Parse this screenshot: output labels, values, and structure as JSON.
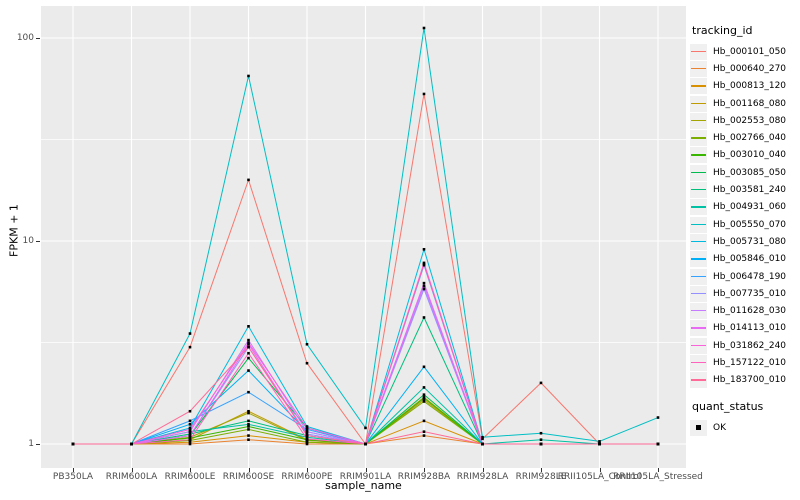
{
  "figure": {
    "background": "#FFFFFF",
    "panel_bg": "#EBEBEB",
    "grid_color": "#FFFFFF",
    "tick_color": "#333333",
    "tick_label_color": "#4D4D4D",
    "point_color": "#000000"
  },
  "chart_data": {
    "type": "line",
    "title": "",
    "xlabel": "sample_name",
    "ylabel": "FPKM + 1",
    "x_type": "categorical",
    "y_scale": "log10",
    "ylim": [
      0.76,
      143
    ],
    "y_major_breaks": [
      1,
      10,
      100
    ],
    "y_tick_labels": [
      "1",
      "10",
      "100"
    ],
    "y_minor_breaks": [
      3.162,
      31.62
    ],
    "grid": true,
    "legend_position": "right",
    "point_marker": "black-square",
    "categories": [
      "PB350LA",
      "RRIM600LA",
      "RRIM600LE",
      "RRIM600SE",
      "RRIM600PE",
      "RRIM901LA",
      "RRIM928BA",
      "RRIM928LA",
      "RRIM928LE",
      "RRII105LA_Control",
      "RRII105LA_Stressed"
    ],
    "series": [
      {
        "name": "Hb_000101_050",
        "color": "#F8766D",
        "values": [
          1.0,
          1.0,
          3.0,
          20,
          2.5,
          1.0,
          53,
          1.06,
          2.0,
          1.0,
          1.0
        ]
      },
      {
        "name": "Hb_000640_270",
        "color": "#EA8331",
        "values": [
          1.0,
          1.0,
          1.0,
          1.05,
          1.0,
          1.0,
          1.1,
          1.0,
          1.0,
          1.0,
          1.0
        ]
      },
      {
        "name": "Hb_000813_120",
        "color": "#D89000",
        "values": [
          1.0,
          1.0,
          1.02,
          1.1,
          1.02,
          1.0,
          1.3,
          1.0,
          1.0,
          1.0,
          1.0
        ]
      },
      {
        "name": "Hb_001168_080",
        "color": "#C09B00",
        "values": [
          1.0,
          1.0,
          1.05,
          1.45,
          1.05,
          1.0,
          1.65,
          1.0,
          1.0,
          1.0,
          1.0
        ]
      },
      {
        "name": "Hb_002553_080",
        "color": "#A3A500",
        "values": [
          1.0,
          1.0,
          1.08,
          1.42,
          1.04,
          1.0,
          1.7,
          1.0,
          1.0,
          1.0,
          1.0
        ]
      },
      {
        "name": "Hb_002766_040",
        "color": "#7CAE00",
        "values": [
          1.0,
          1.0,
          1.04,
          1.18,
          1.02,
          1.0,
          1.62,
          1.0,
          1.0,
          1.0,
          1.0
        ]
      },
      {
        "name": "Hb_003010_040",
        "color": "#39B600",
        "values": [
          1.0,
          1.0,
          1.07,
          1.22,
          1.05,
          1.0,
          1.68,
          1.0,
          1.0,
          1.0,
          1.0
        ]
      },
      {
        "name": "Hb_003085_050",
        "color": "#00BB4E",
        "values": [
          1.0,
          1.0,
          1.1,
          2.65,
          1.2,
          1.0,
          1.75,
          1.0,
          1.0,
          1.0,
          1.0
        ]
      },
      {
        "name": "Hb_003581_240",
        "color": "#00BF7D",
        "values": [
          1.0,
          1.0,
          1.12,
          1.3,
          1.1,
          1.0,
          4.2,
          1.0,
          1.0,
          1.0,
          1.0
        ]
      },
      {
        "name": "Hb_004931_060",
        "color": "#00C1A3",
        "values": [
          1.0,
          1.0,
          1.15,
          1.25,
          1.08,
          1.0,
          1.9,
          1.0,
          1.05,
          1.0,
          1.0
        ]
      },
      {
        "name": "Hb_005550_070",
        "color": "#00BFC4",
        "values": [
          1.0,
          1.0,
          3.5,
          65,
          3.1,
          1.2,
          112,
          1.08,
          1.13,
          1.03,
          1.35
        ]
      },
      {
        "name": "Hb_005731_080",
        "color": "#00BAE0",
        "values": [
          1.0,
          1.0,
          1.2,
          3.8,
          1.22,
          1.0,
          9.1,
          1.0,
          1.0,
          1.0,
          1.0
        ]
      },
      {
        "name": "Hb_005846_010",
        "color": "#00B0F6",
        "values": [
          1.0,
          1.0,
          1.25,
          2.3,
          1.15,
          1.0,
          2.4,
          1.0,
          1.0,
          1.0,
          1.0
        ]
      },
      {
        "name": "Hb_006478_190",
        "color": "#35A2FF",
        "values": [
          1.0,
          1.0,
          1.3,
          1.8,
          1.18,
          1.0,
          7.6,
          1.0,
          1.0,
          1.0,
          1.0
        ]
      },
      {
        "name": "Hb_007735_010",
        "color": "#9590FF",
        "values": [
          1.0,
          1.0,
          1.1,
          3.0,
          1.12,
          1.0,
          5.8,
          1.0,
          1.0,
          1.0,
          1.0
        ]
      },
      {
        "name": "Hb_011628_030",
        "color": "#C77CFF",
        "values": [
          1.0,
          1.0,
          1.15,
          3.25,
          1.15,
          1.0,
          6.0,
          1.0,
          1.0,
          1.0,
          1.0
        ]
      },
      {
        "name": "Hb_014113_010",
        "color": "#E76BF3",
        "values": [
          1.0,
          1.0,
          1.1,
          3.1,
          1.1,
          1.0,
          6.2,
          1.0,
          1.0,
          1.0,
          1.0
        ]
      },
      {
        "name": "Hb_031862_240",
        "color": "#FA62DB",
        "values": [
          1.0,
          1.0,
          1.18,
          3.15,
          1.2,
          1.0,
          7.8,
          1.0,
          1.0,
          1.0,
          1.0
        ]
      },
      {
        "name": "Hb_157122_010",
        "color": "#FF62BC",
        "values": [
          1.0,
          1.0,
          1.05,
          2.8,
          1.06,
          1.0,
          7.7,
          1.0,
          1.0,
          1.0,
          1.0
        ]
      },
      {
        "name": "Hb_183700_010",
        "color": "#FF6A98",
        "values": [
          1.0,
          1.0,
          1.45,
          3.0,
          1.1,
          1.0,
          1.15,
          1.0,
          1.0,
          1.0,
          1.0
        ]
      }
    ],
    "legend": {
      "color_title": "tracking_id",
      "shape_title": "quant_status",
      "shape_items": [
        "OK"
      ]
    }
  }
}
